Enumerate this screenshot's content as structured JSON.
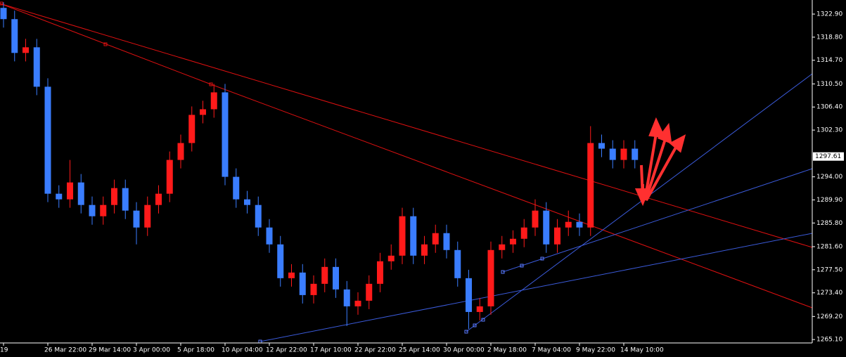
{
  "chart_data": {
    "type": "candlestick",
    "categories": [
      "19",
      null,
      null,
      null,
      "26 Mar 22:00",
      null,
      null,
      null,
      "29 Mar 14:00",
      null,
      null,
      null,
      "3 Apr 00:00",
      null,
      null,
      null,
      "5 Apr 18:00",
      null,
      null,
      null,
      "10 Apr 04:00",
      null,
      null,
      null,
      "12 Apr 22:00",
      null,
      null,
      null,
      "17 Apr 10:00",
      null,
      null,
      null,
      "22 Apr 22:00",
      null,
      null,
      null,
      "25 Apr 14:00",
      null,
      null,
      null,
      "30 Apr 00:00",
      null,
      null,
      null,
      "2 May 18:00",
      null,
      null,
      null,
      "7 May 04:00",
      null,
      null,
      null,
      "9 May 22:00",
      null,
      null,
      null,
      "14 May 10:00",
      null
    ],
    "open": [
      1324,
      1322,
      1316,
      1317,
      1310,
      1291,
      1290,
      1293,
      1289,
      1287,
      1289,
      1292,
      1288,
      1285,
      1289,
      1291,
      1297,
      1300,
      1305,
      1306,
      1309,
      1294,
      1290,
      1289,
      1285,
      1282,
      1276,
      1277,
      1273,
      1275,
      1278,
      1274,
      1271,
      1272,
      1275,
      1279,
      1280,
      1287,
      1280,
      1282,
      1284,
      1281,
      1276,
      1270,
      1271,
      1281,
      1282,
      1283,
      1285,
      1288,
      1282,
      1285,
      1286,
      1285,
      1300,
      1299,
      1297,
      1299
    ],
    "high": [
      1325,
      1323.5,
      1318.5,
      1318.5,
      1311.5,
      1292.5,
      1297,
      1294.5,
      1290.5,
      1290.5,
      1293.5,
      1293.5,
      1289.5,
      1290.5,
      1292.5,
      1298.5,
      1301.5,
      1306.5,
      1307.5,
      1310.5,
      1310.5,
      1295.5,
      1291.5,
      1290.5,
      1286.5,
      1283.5,
      1278.5,
      1278.5,
      1276.5,
      1279.5,
      1279.5,
      1275.5,
      1273.5,
      1276.5,
      1280.5,
      1282,
      1288.5,
      1288.5,
      1283.5,
      1285.5,
      1285.5,
      1282.5,
      1277.5,
      1272.5,
      1282.5,
      1283.5,
      1284.5,
      1286.5,
      1290,
      1289.5,
      1286.5,
      1288,
      1287.5,
      1303,
      1301.5,
      1300.5,
      1300.5,
      1300.5
    ],
    "low": [
      1320.5,
      1314.5,
      1314.5,
      1308.5,
      1289.5,
      1288.5,
      1288.5,
      1287.5,
      1285.5,
      1285.5,
      1287.5,
      1286.5,
      1282,
      1283.5,
      1287.5,
      1289.5,
      1295.5,
      1298.5,
      1303.5,
      1304.5,
      1292.5,
      1288.5,
      1287.5,
      1283.5,
      1280.5,
      1274.5,
      1274.5,
      1271.5,
      1271.5,
      1273.5,
      1272.5,
      1267.5,
      1269.5,
      1270.5,
      1273.5,
      1277.5,
      1278.5,
      1278.5,
      1278.5,
      1280.5,
      1279.5,
      1274.5,
      1267,
      1268.5,
      1269.5,
      1279.5,
      1280.5,
      1281.5,
      1283.5,
      1280.5,
      1280.5,
      1283.5,
      1283.5,
      1283.5,
      1297.5,
      1295.5,
      1295.5,
      1295.5
    ],
    "close": [
      1322,
      1316,
      1317,
      1310,
      1291,
      1290,
      1293,
      1289,
      1287,
      1289,
      1292,
      1288,
      1285,
      1289,
      1291,
      1297,
      1300,
      1305,
      1306,
      1309,
      1294,
      1290,
      1289,
      1285,
      1282,
      1276,
      1277,
      1273,
      1275,
      1278,
      1274,
      1271,
      1272,
      1275,
      1279,
      1280,
      1287,
      1280,
      1282,
      1284,
      1281,
      1276,
      1270,
      1271,
      1281,
      1282,
      1283,
      1285,
      1288,
      1282,
      1285,
      1286,
      1285,
      1300,
      1299,
      1297,
      1299,
      1297
    ],
    "up_color": "#ff1a1a",
    "down_color": "#3a7dff",
    "ylim": [
      1264.5,
      1325.4
    ],
    "yticks": [
      {
        "value": 1322.9,
        "label": "1322.90"
      },
      {
        "value": 1318.8,
        "label": "1318.80"
      },
      {
        "value": 1314.7,
        "label": "1314.70"
      },
      {
        "value": 1310.5,
        "label": "1310.50"
      },
      {
        "value": 1306.4,
        "label": "1306.40"
      },
      {
        "value": 1302.3,
        "label": "1302.30"
      },
      {
        "value": 1294,
        "label": "1294.00"
      },
      {
        "value": 1289.9,
        "label": "1289.90"
      },
      {
        "value": 1285.8,
        "label": "1285.80"
      },
      {
        "value": 1281.6,
        "label": "1281.60"
      },
      {
        "value": 1277.5,
        "label": "1277.50"
      },
      {
        "value": 1273.4,
        "label": "1273.40"
      },
      {
        "value": 1269.2,
        "label": "1269.20"
      },
      {
        "value": 1265.1,
        "label": "1265.10"
      }
    ],
    "current_price": 1297.61
  }
}
